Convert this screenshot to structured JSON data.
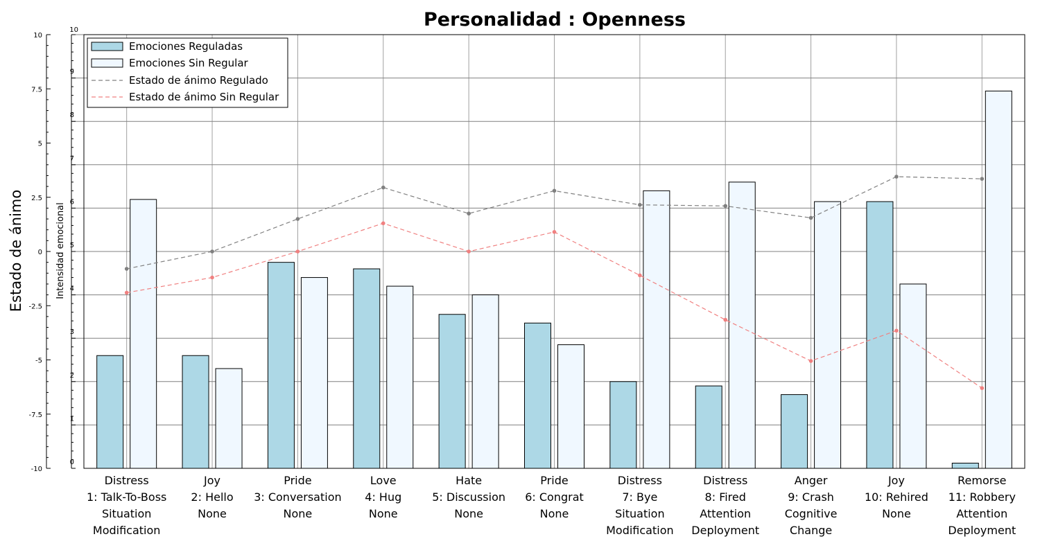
{
  "chart_data": {
    "type": "bar",
    "title": "Personalidad : Openness",
    "left_axis": {
      "label": "Estado de ánimo",
      "ylim": [
        -10,
        10
      ],
      "ticks": [
        "10",
        "7.5",
        "5",
        "2.5",
        "0",
        "-2.5",
        "-5",
        "-7.5",
        "-10"
      ]
    },
    "right_axis": {
      "label": "Intensidad emocional",
      "ylim": [
        0,
        10
      ],
      "ticks": [
        "10",
        "9",
        "8",
        "7",
        "6",
        "5",
        "4",
        "3",
        "2",
        "1",
        "0"
      ]
    },
    "categories": [
      [
        "Distress",
        "1: Talk-To-Boss",
        "Situation",
        "Modification"
      ],
      [
        "Joy",
        "2: Hello",
        "None"
      ],
      [
        "Pride",
        "3: Conversation",
        "None"
      ],
      [
        "Love",
        "4: Hug",
        "None"
      ],
      [
        "Hate",
        "5: Discussion",
        "None"
      ],
      [
        "Pride",
        "6: Congrat",
        "None"
      ],
      [
        "Distress",
        "7: Bye",
        "Situation",
        "Modification"
      ],
      [
        "Distress",
        "8: Fired",
        "Attention",
        "Deployment"
      ],
      [
        "Anger",
        "9: Crash",
        "Cognitive",
        "Change"
      ],
      [
        "Joy",
        "10: Rehired",
        "None"
      ],
      [
        "Remorse",
        "11: Robbery",
        "Attention",
        "Deployment"
      ]
    ],
    "bar_series": [
      {
        "name": "Emociones Reguladas",
        "axis": "right",
        "color": "#add8e6",
        "values": [
          2.6,
          2.6,
          4.75,
          4.6,
          3.55,
          3.35,
          2.0,
          1.9,
          1.7,
          6.15,
          0.12
        ]
      },
      {
        "name": "Emociones Sin Regular",
        "axis": "right",
        "color": "#f0f8ff",
        "values": [
          6.2,
          2.3,
          4.4,
          4.2,
          4.0,
          2.85,
          6.4,
          6.6,
          6.15,
          4.25,
          8.7
        ]
      }
    ],
    "line_series": [
      {
        "name": "Estado de ánimo Regulado",
        "axis": "left",
        "color": "#808080",
        "values": [
          -0.8,
          0.0,
          1.5,
          2.95,
          1.75,
          2.8,
          2.15,
          2.1,
          1.55,
          3.45,
          3.35
        ]
      },
      {
        "name": "Estado de ánimo Sin Regular",
        "axis": "left",
        "color": "#f08080",
        "values": [
          -1.9,
          -1.2,
          0.0,
          1.3,
          0.0,
          0.9,
          -1.1,
          -3.15,
          -5.05,
          -3.65,
          -6.3
        ]
      }
    ],
    "legend": "top-left",
    "grid": true
  }
}
